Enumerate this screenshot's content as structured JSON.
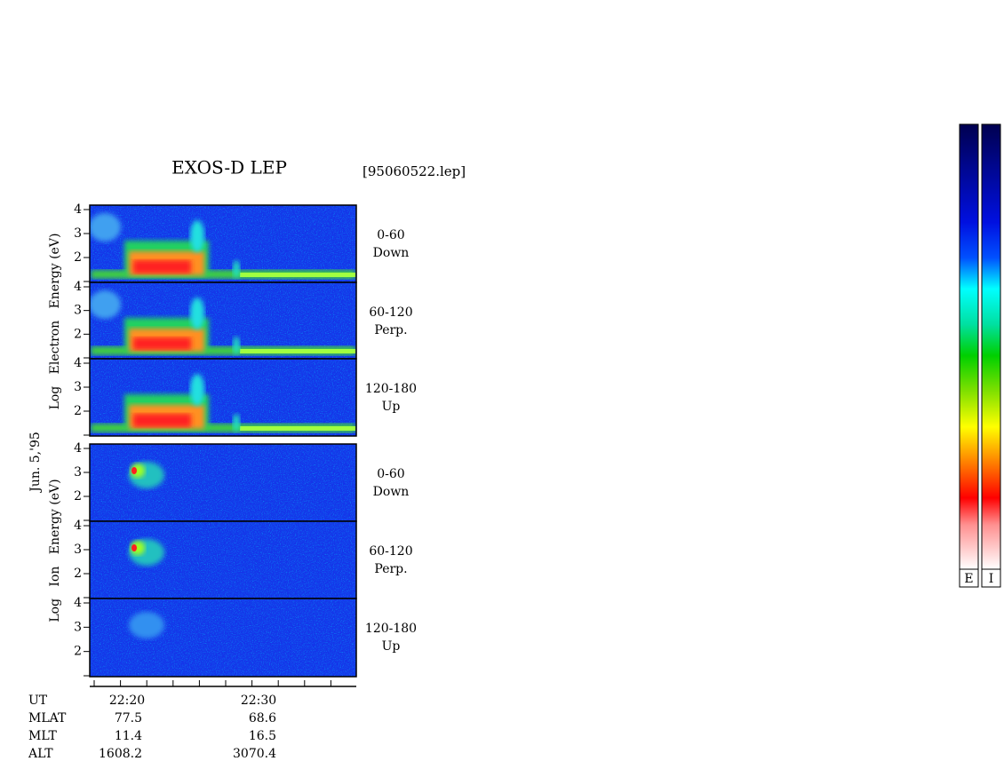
{
  "header": {
    "title": "EXOS-D LEP",
    "file": "[95060522.lep]"
  },
  "electron_axis_label": "Log   Electron   Energy (eV)",
  "ion_axis_label": "Log   Ion   Energy (eV)",
  "date": "Jun. 5,'95",
  "panels": [
    {
      "angle": "0-60",
      "direction": "Down",
      "yticks": [
        "4",
        "3",
        "2"
      ]
    },
    {
      "angle": "60-120",
      "direction": "Perp.",
      "yticks": [
        "4",
        "3",
        "2"
      ]
    },
    {
      "angle": "120-180",
      "direction": "Up",
      "yticks": [
        "4",
        "3",
        "2"
      ]
    },
    {
      "angle": "0-60",
      "direction": "Down",
      "yticks": [
        "4",
        "3",
        "2"
      ]
    },
    {
      "angle": "60-120",
      "direction": "Perp.",
      "yticks": [
        "4",
        "3",
        "2"
      ]
    },
    {
      "angle": "120-180",
      "direction": "Up",
      "yticks": [
        "4",
        "3",
        "2"
      ]
    }
  ],
  "footer": {
    "rows": [
      [
        "UT",
        "22:20",
        "22:30"
      ],
      [
        "MLAT",
        "77.5",
        "68.6"
      ],
      [
        "MLT",
        "11.4",
        "16.5"
      ],
      [
        "ALT",
        "1608.2",
        "3070.4"
      ]
    ]
  },
  "colorbars": [
    "E",
    "I"
  ]
}
